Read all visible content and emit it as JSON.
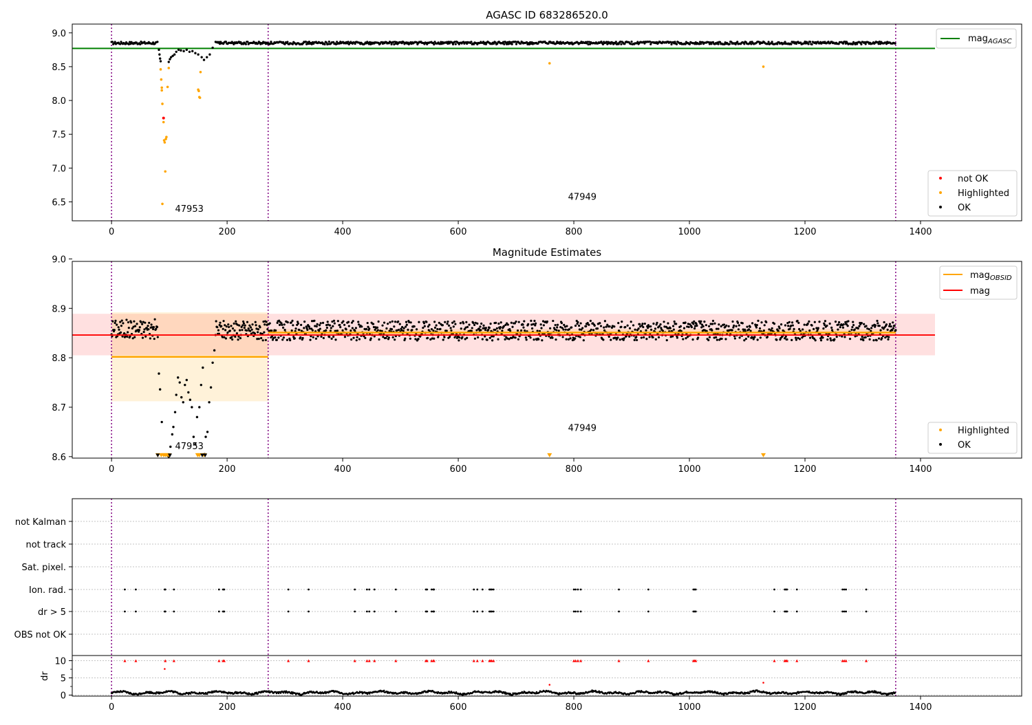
{
  "chart_data": [
    {
      "type": "scatter",
      "title": "AGASC ID 683286520.0",
      "xlim": [
        -68,
        1575
      ],
      "ylim": [
        6.22,
        9.13
      ],
      "xticks": [
        0,
        200,
        400,
        600,
        800,
        1000,
        1200,
        1400
      ],
      "yticks": [
        6.5,
        7.0,
        7.5,
        8.0,
        8.5,
        9.0
      ],
      "ytick_labels": [
        "6.5",
        "7.0",
        "7.5",
        "8.0",
        "8.5",
        "9.0"
      ],
      "obsid_boundaries": [
        0,
        271,
        1357
      ],
      "obsid_labels": [
        {
          "text": "47953",
          "x": 110,
          "y": 6.35
        },
        {
          "text": "47949",
          "x": 790,
          "y": 6.53
        }
      ],
      "mag_agasc": 8.77,
      "mag_agasc_color": "#008000",
      "legend_top": {
        "position": "upper right",
        "entries": [
          {
            "label": "mag",
            "sub": "AGASC",
            "style": "line",
            "color": "#008000"
          }
        ]
      },
      "legend_bottom": {
        "position": "lower right",
        "entries": [
          {
            "label": "not OK",
            "color": "#ff0000"
          },
          {
            "label": "Highlighted",
            "color": "#ffa500"
          },
          {
            "label": "OK",
            "color": "#000000"
          }
        ]
      },
      "series": [
        {
          "name": "OK",
          "color": "#000000",
          "baseline_segments": [
            [
              0,
              80,
              8.85
            ],
            [
              180,
              1357,
              8.85
            ]
          ],
          "points": [
            [
              82,
              8.75
            ],
            [
              83,
              8.68
            ],
            [
              84,
              8.62
            ],
            [
              85,
              8.58
            ],
            [
              99,
              8.57
            ],
            [
              101,
              8.61
            ],
            [
              103,
              8.64
            ],
            [
              106,
              8.66
            ],
            [
              109,
              8.68
            ],
            [
              112,
              8.72
            ],
            [
              116,
              8.75
            ],
            [
              120,
              8.74
            ],
            [
              125,
              8.73
            ],
            [
              130,
              8.75
            ],
            [
              135,
              8.72
            ],
            [
              140,
              8.73
            ],
            [
              145,
              8.7
            ],
            [
              150,
              8.68
            ],
            [
              156,
              8.64
            ],
            [
              160,
              8.6
            ],
            [
              165,
              8.64
            ],
            [
              170,
              8.68
            ],
            [
              175,
              8.78
            ]
          ]
        },
        {
          "name": "Highlighted",
          "color": "#ffa500",
          "points": [
            [
              85,
              8.46
            ],
            [
              86,
              8.31
            ],
            [
              87,
              8.19
            ],
            [
              87,
              8.15
            ],
            [
              88,
              7.95
            ],
            [
              90,
              7.68
            ],
            [
              91,
              7.41
            ],
            [
              92,
              7.38
            ],
            [
              93,
              6.95
            ],
            [
              94,
              7.43
            ],
            [
              95,
              7.46
            ],
            [
              88,
              6.47
            ],
            [
              97,
              8.2
            ],
            [
              99,
              8.48
            ],
            [
              150,
              8.16
            ],
            [
              151,
              8.14
            ],
            [
              152,
              8.05
            ],
            [
              153,
              8.04
            ],
            [
              154,
              8.42
            ],
            [
              758,
              8.55
            ],
            [
              1128,
              8.5
            ]
          ]
        },
        {
          "name": "not OK",
          "color": "#ff0000",
          "points": [
            [
              90,
              7.74
            ]
          ]
        }
      ]
    },
    {
      "type": "scatter",
      "title": "Magnitude Estimates",
      "xlim": [
        -68,
        1575
      ],
      "ylim": [
        8.597,
        8.995
      ],
      "xticks": [
        0,
        200,
        400,
        600,
        800,
        1000,
        1200,
        1400
      ],
      "yticks": [
        8.6,
        8.7,
        8.8,
        8.9,
        9.0
      ],
      "ytick_labels": [
        "8.6",
        "8.7",
        "8.8",
        "8.9",
        "9.0"
      ],
      "obsid_boundaries": [
        0,
        271,
        1357
      ],
      "obsid_labels": [
        {
          "text": "47953",
          "x": 110,
          "y": 8.615
        },
        {
          "text": "47949",
          "x": 790,
          "y": 8.652
        }
      ],
      "mag": {
        "value": 8.846,
        "band": [
          8.805,
          8.889
        ],
        "xrange": [
          -68,
          1425
        ],
        "color": "#ff0000"
      },
      "mag_obsid": [
        {
          "x": [
            0,
            271
          ],
          "value": 8.802,
          "band": [
            8.712,
            8.892
          ]
        },
        {
          "x": [
            271,
            1357
          ],
          "value": 8.851,
          "band": [
            8.846,
            8.858
          ]
        }
      ],
      "legend_top": {
        "position": "upper right",
        "entries": [
          {
            "label": "mag",
            "sub": "OBSID",
            "style": "line",
            "color": "#ffa500"
          },
          {
            "label": "mag",
            "sub": "",
            "style": "line",
            "color": "#ff0000"
          }
        ]
      },
      "legend_bottom": {
        "position": "lower right",
        "entries": [
          {
            "label": "Highlighted",
            "color": "#ffa500"
          },
          {
            "label": "OK",
            "color": "#000000"
          }
        ]
      },
      "series": [
        {
          "name": "OK",
          "color": "#000000",
          "baseline_segments": [
            [
              0,
              80,
              8.858
            ],
            [
              180,
              1357,
              8.855
            ]
          ],
          "points": [
            [
              82,
              8.768
            ],
            [
              84,
              8.736
            ],
            [
              87,
              8.67
            ],
            [
              99,
              8.6
            ],
            [
              102,
              8.62
            ],
            [
              105,
              8.645
            ],
            [
              107,
              8.66
            ],
            [
              110,
              8.69
            ],
            [
              112,
              8.725
            ],
            [
              115,
              8.76
            ],
            [
              118,
              8.75
            ],
            [
              121,
              8.72
            ],
            [
              124,
              8.71
            ],
            [
              127,
              8.745
            ],
            [
              130,
              8.755
            ],
            [
              133,
              8.73
            ],
            [
              136,
              8.715
            ],
            [
              139,
              8.7
            ],
            [
              142,
              8.64
            ],
            [
              145,
              8.625
            ],
            [
              148,
              8.68
            ],
            [
              152,
              8.7
            ],
            [
              155,
              8.745
            ],
            [
              158,
              8.78
            ],
            [
              161,
              8.605
            ],
            [
              163,
              8.64
            ],
            [
              166,
              8.65
            ],
            [
              169,
              8.71
            ],
            [
              172,
              8.74
            ],
            [
              175,
              8.79
            ],
            [
              178,
              8.815
            ]
          ]
        },
        {
          "name": "Highlighted",
          "color": "#ffa500",
          "marker": "triangle-down",
          "clipped_at": 8.6,
          "points": [
            [
              80,
              8.6
            ],
            [
              86,
              8.6
            ],
            [
              90,
              8.6
            ],
            [
              93,
              8.6
            ],
            [
              96,
              8.6
            ],
            [
              99,
              8.6
            ],
            [
              149,
              8.6
            ],
            [
              152,
              8.6
            ],
            [
              160,
              8.6
            ],
            [
              758,
              8.6
            ],
            [
              1128,
              8.6
            ]
          ]
        }
      ]
    },
    {
      "type": "scatter",
      "title": "",
      "xlim": [
        -68,
        1575
      ],
      "ylim": [
        -0.3,
        11.5
      ],
      "xticks": [
        0,
        200,
        400,
        600,
        800,
        1000,
        1200,
        1400
      ],
      "yticks": [
        0,
        5,
        10
      ],
      "ytick_labels": [
        "0",
        "5",
        "10"
      ],
      "ylabel": "dr",
      "obsid_boundaries": [
        0,
        271,
        1357
      ],
      "flag_rows": [
        "not Kalman",
        "not track",
        "Sat. pixel.",
        "Ion. rad.",
        "dr > 5",
        "OBS not OK"
      ],
      "flags": {
        "not Kalman": [],
        "not track": [],
        "Sat. pixel.": [],
        "Ion. rad.": [
          23,
          42,
          92,
          93,
          108,
          186,
          193,
          195,
          306,
          341,
          421,
          442,
          446,
          455,
          492,
          544,
          546,
          554,
          557,
          558,
          627,
          633,
          642,
          654,
          656,
          658,
          661,
          800,
          803,
          807,
          812,
          878,
          929,
          1007,
          1009,
          1011,
          1147,
          1165,
          1167,
          1169,
          1186,
          1265,
          1268,
          1271,
          1306
        ],
        "dr > 5": [
          23,
          42,
          92,
          93,
          108,
          186,
          193,
          195,
          306,
          341,
          421,
          442,
          446,
          455,
          492,
          544,
          546,
          554,
          557,
          558,
          627,
          633,
          642,
          654,
          656,
          658,
          661,
          800,
          803,
          807,
          812,
          878,
          929,
          1007,
          1009,
          1011,
          1147,
          1165,
          1167,
          1169,
          1186,
          1265,
          1268,
          1271,
          1306
        ],
        "OBS not OK": []
      },
      "dr_capped": [
        23,
        42,
        93,
        108,
        186,
        193,
        195,
        306,
        341,
        421,
        442,
        446,
        455,
        492,
        544,
        546,
        554,
        557,
        558,
        627,
        633,
        642,
        654,
        656,
        658,
        661,
        800,
        803,
        807,
        812,
        878,
        929,
        1007,
        1009,
        1011,
        1147,
        1165,
        1167,
        1169,
        1186,
        1265,
        1268,
        1271,
        1306
      ],
      "dr_outliers": [
        [
          92,
          7.6
        ],
        [
          758,
          3.0
        ],
        [
          1128,
          3.6
        ]
      ],
      "dr_cap": 10
    }
  ]
}
